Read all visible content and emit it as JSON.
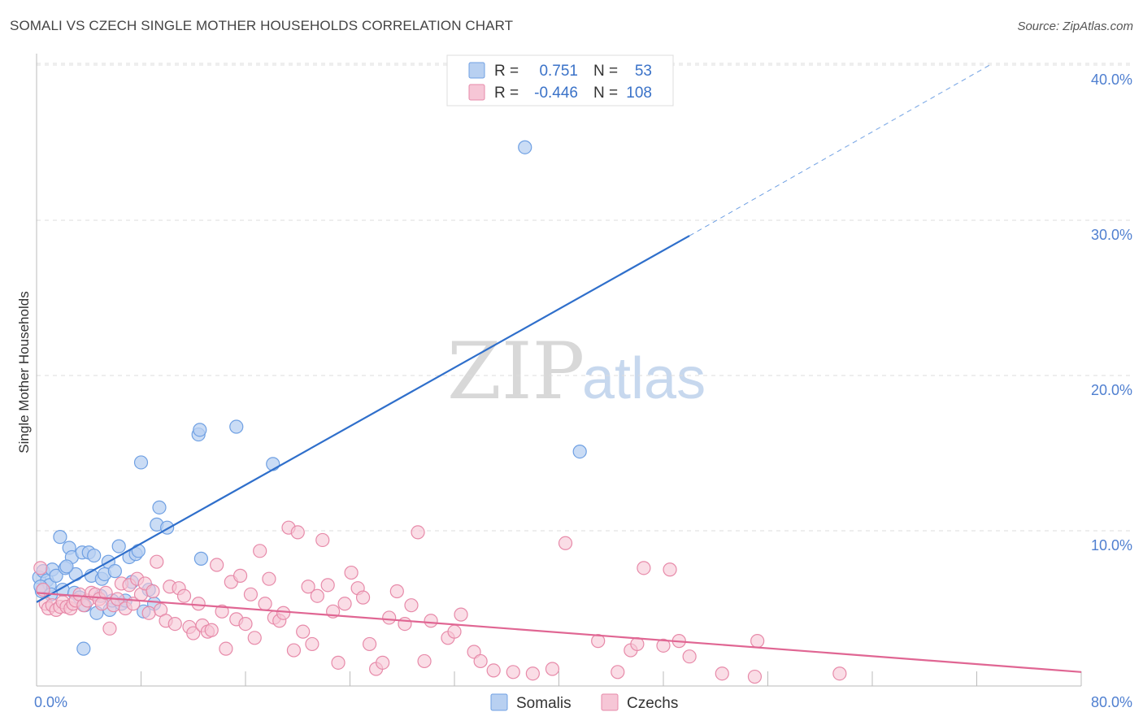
{
  "title": "SOMALI VS CZECH SINGLE MOTHER HOUSEHOLDS CORRELATION CHART",
  "source": "Source: ZipAtlas.com",
  "watermark": {
    "zip": "ZIP",
    "atlas": "atlas"
  },
  "colors": {
    "somali": "#6fa0e3",
    "somali_fill": "#b8d0f1",
    "somali_line": "#2f6fcb",
    "czech": "#e78aa9",
    "czech_fill": "#f6c6d6",
    "czech_line": "#e06693",
    "grid": "#dddddd",
    "tick_label": "#4f7fd0"
  },
  "chart_data": {
    "type": "scatter",
    "title": "SOMALI VS CZECH SINGLE MOTHER HOUSEHOLDS CORRELATION CHART",
    "xlabel": "",
    "ylabel": "Single Mother Households",
    "xlim": [
      0,
      80
    ],
    "ylim": [
      0,
      42
    ],
    "y_ticks": [
      10,
      20,
      30,
      40
    ],
    "y_tick_labels": [
      "10.0%",
      "20.0%",
      "30.0%",
      "40.0%"
    ],
    "x_tick_labels": {
      "min": "0.0%",
      "max": "80.0%"
    },
    "legend": {
      "rows": [
        {
          "series": "Somalis",
          "r_label": "R =",
          "r_value": "0.751",
          "n_label": "N =",
          "n_value": "53"
        },
        {
          "series": "Czechs",
          "r_label": "R =",
          "r_value": "-0.446",
          "n_label": "N =",
          "n_value": "108"
        }
      ]
    },
    "series": [
      {
        "name": "Somalis",
        "trend": {
          "x0": 0,
          "y0": 5.4,
          "x1": 50,
          "y1": 29.0,
          "dash_x1": 73,
          "dash_y1": 40.0
        },
        "points": [
          [
            0.2,
            7.0
          ],
          [
            0.4,
            6.1
          ],
          [
            0.5,
            7.4
          ],
          [
            0.8,
            6.8
          ],
          [
            1.0,
            6.5
          ],
          [
            1.2,
            7.5
          ],
          [
            1.5,
            7.1
          ],
          [
            1.8,
            9.6
          ],
          [
            2.0,
            6.2
          ],
          [
            2.2,
            7.6
          ],
          [
            2.5,
            8.9
          ],
          [
            2.7,
            8.3
          ],
          [
            2.9,
            6.0
          ],
          [
            3.0,
            7.2
          ],
          [
            3.3,
            5.7
          ],
          [
            3.5,
            8.6
          ],
          [
            3.7,
            5.2
          ],
          [
            4.0,
            8.6
          ],
          [
            4.2,
            7.1
          ],
          [
            4.4,
            8.4
          ],
          [
            4.6,
            4.7
          ],
          [
            5.0,
            6.9
          ],
          [
            5.2,
            7.2
          ],
          [
            5.5,
            8.0
          ],
          [
            5.6,
            4.9
          ],
          [
            5.8,
            5.5
          ],
          [
            6.0,
            7.4
          ],
          [
            6.3,
            9.0
          ],
          [
            6.5,
            5.3
          ],
          [
            6.8,
            5.5
          ],
          [
            7.1,
            8.3
          ],
          [
            7.3,
            6.7
          ],
          [
            7.6,
            8.5
          ],
          [
            7.8,
            8.7
          ],
          [
            8.0,
            14.4
          ],
          [
            8.2,
            4.8
          ],
          [
            8.6,
            6.2
          ],
          [
            9.0,
            5.3
          ],
          [
            9.2,
            10.4
          ],
          [
            9.4,
            11.5
          ],
          [
            10.0,
            10.2
          ],
          [
            12.4,
            16.2
          ],
          [
            12.5,
            16.5
          ],
          [
            12.6,
            8.2
          ],
          [
            15.3,
            16.7
          ],
          [
            18.1,
            14.3
          ],
          [
            37.4,
            34.7
          ],
          [
            41.6,
            15.1
          ],
          [
            3.6,
            2.4
          ],
          [
            0.3,
            6.4
          ],
          [
            1.1,
            5.9
          ],
          [
            2.3,
            7.7
          ],
          [
            4.9,
            5.8
          ]
        ]
      },
      {
        "name": "Czechs",
        "trend": {
          "x0": 0,
          "y0": 6.0,
          "x1": 80,
          "y1": 0.9
        },
        "points": [
          [
            0.3,
            7.6
          ],
          [
            0.5,
            6.2
          ],
          [
            0.7,
            5.3
          ],
          [
            0.9,
            5.0
          ],
          [
            1.2,
            5.2
          ],
          [
            1.5,
            4.9
          ],
          [
            1.8,
            5.1
          ],
          [
            2.0,
            5.4
          ],
          [
            2.3,
            5.1
          ],
          [
            2.6,
            5.0
          ],
          [
            2.8,
            5.3
          ],
          [
            3.0,
            5.5
          ],
          [
            3.3,
            5.9
          ],
          [
            3.6,
            5.2
          ],
          [
            3.9,
            5.5
          ],
          [
            4.2,
            6.0
          ],
          [
            4.5,
            5.9
          ],
          [
            4.8,
            5.6
          ],
          [
            5.0,
            5.3
          ],
          [
            5.3,
            6.0
          ],
          [
            5.6,
            3.7
          ],
          [
            5.9,
            5.2
          ],
          [
            6.2,
            5.6
          ],
          [
            6.5,
            6.6
          ],
          [
            6.8,
            5.0
          ],
          [
            7.1,
            6.5
          ],
          [
            7.4,
            5.3
          ],
          [
            7.7,
            6.9
          ],
          [
            8.0,
            5.9
          ],
          [
            8.3,
            6.6
          ],
          [
            8.6,
            4.7
          ],
          [
            8.9,
            6.1
          ],
          [
            9.2,
            8.0
          ],
          [
            9.5,
            4.9
          ],
          [
            9.9,
            4.2
          ],
          [
            10.2,
            6.4
          ],
          [
            10.6,
            4.0
          ],
          [
            10.9,
            6.3
          ],
          [
            11.3,
            5.8
          ],
          [
            11.7,
            3.8
          ],
          [
            12.0,
            3.4
          ],
          [
            12.4,
            5.3
          ],
          [
            12.7,
            3.9
          ],
          [
            13.1,
            3.5
          ],
          [
            13.4,
            3.6
          ],
          [
            13.8,
            7.8
          ],
          [
            14.2,
            4.8
          ],
          [
            14.5,
            2.4
          ],
          [
            14.9,
            6.7
          ],
          [
            15.3,
            4.3
          ],
          [
            15.6,
            7.1
          ],
          [
            16.0,
            4.0
          ],
          [
            16.4,
            5.9
          ],
          [
            16.7,
            3.1
          ],
          [
            17.1,
            8.7
          ],
          [
            17.5,
            5.3
          ],
          [
            17.8,
            6.9
          ],
          [
            18.2,
            4.4
          ],
          [
            18.6,
            4.2
          ],
          [
            18.9,
            4.7
          ],
          [
            19.3,
            10.2
          ],
          [
            19.7,
            2.3
          ],
          [
            20.0,
            9.9
          ],
          [
            20.4,
            3.5
          ],
          [
            20.8,
            6.4
          ],
          [
            21.1,
            2.7
          ],
          [
            21.5,
            5.8
          ],
          [
            21.9,
            9.4
          ],
          [
            22.3,
            6.5
          ],
          [
            22.7,
            4.8
          ],
          [
            23.1,
            1.5
          ],
          [
            23.6,
            5.3
          ],
          [
            24.1,
            7.3
          ],
          [
            24.6,
            6.3
          ],
          [
            25.0,
            5.7
          ],
          [
            25.5,
            2.7
          ],
          [
            26.0,
            1.1
          ],
          [
            26.5,
            1.5
          ],
          [
            27.0,
            4.4
          ],
          [
            27.6,
            6.1
          ],
          [
            28.2,
            4.0
          ],
          [
            28.7,
            5.2
          ],
          [
            29.2,
            9.9
          ],
          [
            29.7,
            1.6
          ],
          [
            30.2,
            4.2
          ],
          [
            31.5,
            3.1
          ],
          [
            32.0,
            3.5
          ],
          [
            32.5,
            4.6
          ],
          [
            33.5,
            2.2
          ],
          [
            34.0,
            1.6
          ],
          [
            35.0,
            1.0
          ],
          [
            36.5,
            0.9
          ],
          [
            38.0,
            0.8
          ],
          [
            39.5,
            1.1
          ],
          [
            40.5,
            9.2
          ],
          [
            43.0,
            2.9
          ],
          [
            44.5,
            0.9
          ],
          [
            45.5,
            2.3
          ],
          [
            46.0,
            2.7
          ],
          [
            46.5,
            7.6
          ],
          [
            48.0,
            2.6
          ],
          [
            48.5,
            7.5
          ],
          [
            49.2,
            2.9
          ],
          [
            50.0,
            1.9
          ],
          [
            52.5,
            0.8
          ],
          [
            55.0,
            0.6
          ],
          [
            55.2,
            2.9
          ],
          [
            61.5,
            0.8
          ]
        ]
      }
    ]
  }
}
